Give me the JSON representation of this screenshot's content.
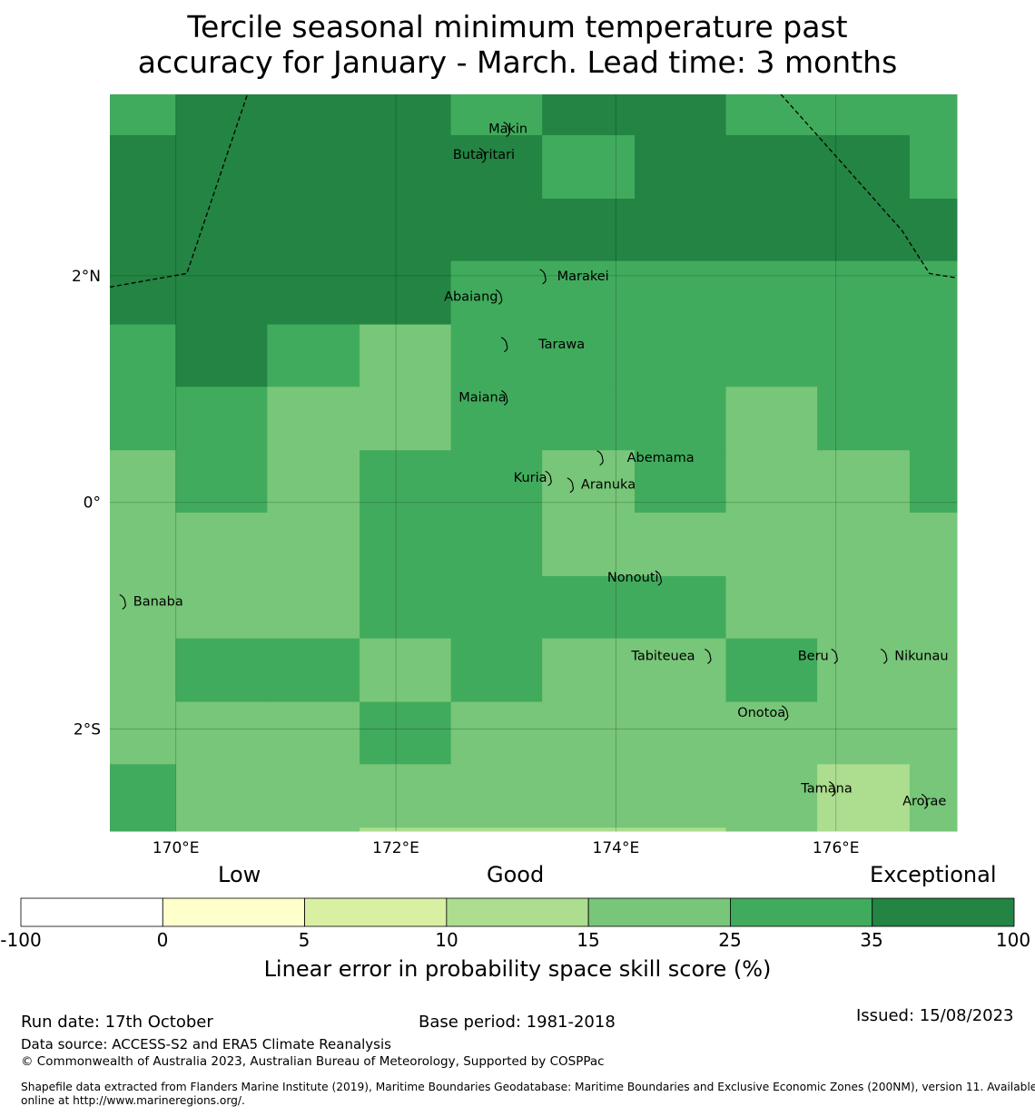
{
  "title": {
    "line1": "Tercile seasonal minimum temperature past",
    "line2": "accuracy for January - March. Lead time: 3 months"
  },
  "map": {
    "lon_range": [
      169.4,
      177.1
    ],
    "lat_range": [
      -2.9,
      3.6
    ],
    "lon_ticks": [
      {
        "v": 170,
        "label": "170°E"
      },
      {
        "v": 172,
        "label": "172°E"
      },
      {
        "v": 174,
        "label": "174°E"
      },
      {
        "v": 176,
        "label": "176°E"
      }
    ],
    "lat_ticks": [
      {
        "v": 2,
        "label": "2°N"
      },
      {
        "v": 0,
        "label": "0°"
      },
      {
        "v": -2,
        "label": "2°S"
      }
    ],
    "colors": [
      "#ffffff",
      "#ffffcc",
      "#d9f0a3",
      "#addd8e",
      "#78c679",
      "#41ab5d",
      "#238443"
    ],
    "grid_columns_lon": [
      169.4,
      170.0,
      170.83,
      171.67,
      172.5,
      173.33,
      174.17,
      175.0,
      175.83,
      176.67,
      177.1
    ],
    "grid_rows_lat": [
      3.6,
      3.24,
      2.68,
      2.13,
      1.57,
      1.02,
      0.46,
      -0.09,
      -0.65,
      -1.2,
      -1.76,
      -2.31,
      -2.87,
      -3.1
    ],
    "cells": [
      [
        5,
        6,
        6,
        6,
        5,
        6,
        6,
        5,
        5,
        5
      ],
      [
        6,
        6,
        6,
        6,
        6,
        5,
        6,
        6,
        6,
        5
      ],
      [
        6,
        6,
        6,
        6,
        6,
        6,
        6,
        6,
        6,
        6
      ],
      [
        6,
        6,
        6,
        6,
        5,
        5,
        5,
        5,
        5,
        5
      ],
      [
        5,
        6,
        5,
        4,
        5,
        5,
        5,
        5,
        5,
        5
      ],
      [
        5,
        5,
        4,
        4,
        5,
        5,
        5,
        4,
        5,
        5
      ],
      [
        4,
        5,
        4,
        5,
        5,
        4,
        5,
        4,
        4,
        5
      ],
      [
        4,
        4,
        4,
        5,
        5,
        4,
        4,
        4,
        4,
        4
      ],
      [
        4,
        4,
        4,
        5,
        5,
        5,
        5,
        4,
        4,
        4
      ],
      [
        4,
        5,
        5,
        4,
        5,
        4,
        4,
        5,
        4,
        4
      ],
      [
        4,
        4,
        4,
        5,
        4,
        4,
        4,
        4,
        4,
        4
      ],
      [
        5,
        4,
        4,
        4,
        4,
        4,
        4,
        4,
        3,
        4
      ],
      [
        5,
        4,
        4,
        3,
        3,
        3,
        3,
        4,
        3,
        4
      ]
    ],
    "eez_boundaries": [
      [
        [
          169.4,
          1.9
        ],
        [
          170.1,
          2.02
        ],
        [
          170.65,
          3.6
        ]
      ],
      [
        [
          175.5,
          3.6
        ],
        [
          176.6,
          2.4
        ],
        [
          176.85,
          2.02
        ],
        [
          177.1,
          1.98
        ]
      ]
    ],
    "islands": [
      {
        "name": "Makin",
        "lon": 173.02,
        "lat": 3.3,
        "label_dx": 0,
        "anchor": "middle"
      },
      {
        "name": "Butaritari",
        "lon": 172.8,
        "lat": 3.07,
        "label_dx": 0,
        "anchor": "middle"
      },
      {
        "name": "Marakei",
        "lon": 173.35,
        "lat": 2.0,
        "label_dx": 14,
        "anchor": "start"
      },
      {
        "name": "Abaiang",
        "lon": 172.95,
        "lat": 1.82,
        "label_dx": -62,
        "anchor": "start"
      },
      {
        "name": "Tarawa",
        "lon": 173.0,
        "lat": 1.4,
        "label_dx": 36,
        "anchor": "start"
      },
      {
        "name": "Maiana",
        "lon": 173.0,
        "lat": 0.93,
        "label_dx": -52,
        "anchor": "start"
      },
      {
        "name": "Abemama",
        "lon": 173.87,
        "lat": 0.4,
        "label_dx": 28,
        "anchor": "start"
      },
      {
        "name": "Kuria",
        "lon": 173.4,
        "lat": 0.22,
        "label_dx": -40,
        "anchor": "start"
      },
      {
        "name": "Aranuka",
        "lon": 173.6,
        "lat": 0.16,
        "label_dx": 10,
        "anchor": "start"
      },
      {
        "name": "Nonouti",
        "lon": 174.4,
        "lat": -0.66,
        "label_dx": -58,
        "anchor": "start"
      },
      {
        "name": "Banaba",
        "lon": 169.53,
        "lat": -0.87,
        "label_dx": 10,
        "anchor": "start"
      },
      {
        "name": "Tabiteuea",
        "lon": 174.85,
        "lat": -1.35,
        "label_dx": -86,
        "anchor": "start"
      },
      {
        "name": "Beru",
        "lon": 176.0,
        "lat": -1.35,
        "label_dx": -42,
        "anchor": "start"
      },
      {
        "name": "Nikunau",
        "lon": 176.45,
        "lat": -1.35,
        "label_dx": 10,
        "anchor": "start"
      },
      {
        "name": "Onotoa",
        "lon": 175.55,
        "lat": -1.85,
        "label_dx": -54,
        "anchor": "start"
      },
      {
        "name": "Tamana",
        "lon": 175.98,
        "lat": -2.52,
        "label_dx": -36,
        "anchor": "start"
      },
      {
        "name": "Arorae",
        "lon": 176.82,
        "lat": -2.63,
        "label_dx": -26,
        "anchor": "start"
      }
    ]
  },
  "colorbar": {
    "categories": [
      "Low",
      "Good",
      "Exceptional"
    ],
    "ticks": [
      "-100",
      "0",
      "5",
      "10",
      "15",
      "25",
      "35",
      "100"
    ],
    "label": "Linear error in probability space skill score (%)"
  },
  "footer": {
    "run_date": "Run date: 17th October",
    "base_period": "Base period: 1981-2018",
    "issued": "Issued: 15/08/2023",
    "data_source": "Data source: ACCESS-S2 and ERA5 Climate Reanalysis",
    "copyright": "© Commonwealth of Australia 2023, Australian Bureau of Meteorology, Supported by COSPPac",
    "shapefile_line1": "Shapefile data extracted from Flanders Marine Institute (2019), Maritime Boundaries Geodatabase: Maritime Boundaries and Exclusive Economic Zones (200NM), version 11. Available",
    "shapefile_line2": "online at http://www.marineregions.org/."
  }
}
